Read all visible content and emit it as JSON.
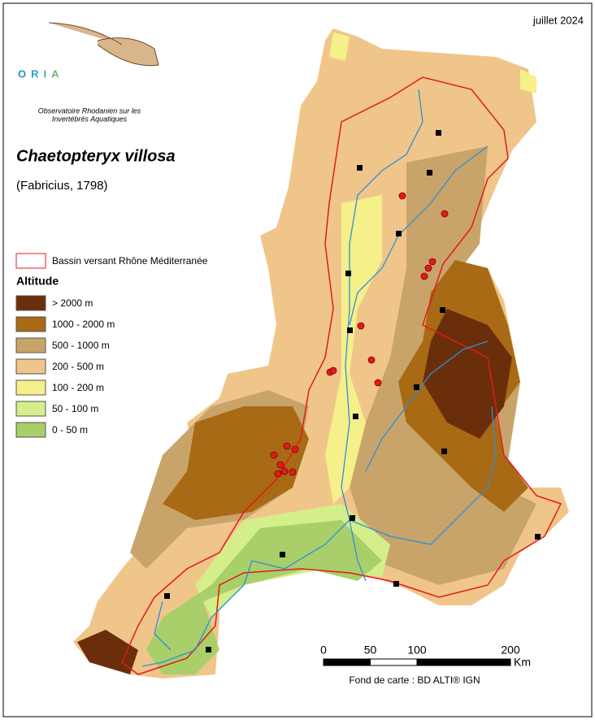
{
  "header": {
    "date": "juillet 2024"
  },
  "logo": {
    "name": "ORIA",
    "subtitle_lines": [
      "Observatoire Rhodanien sur les",
      "Invertébrés Aquatiques"
    ]
  },
  "species": {
    "name": "Chaetopteryx villosa",
    "author": "(Fabricius, 1798)"
  },
  "legend": {
    "boundary": {
      "label": "Bassin versant Rhône Méditerranée",
      "color": "#e31a1c"
    },
    "altitude_title": "Altitude",
    "classes": [
      {
        "label": "> 2000 m",
        "color": "#6b2e0a"
      },
      {
        "label": "1000 - 2000 m",
        "color": "#a86a14"
      },
      {
        "label": "500 - 1000 m",
        "color": "#c9a46a"
      },
      {
        "label": "200 - 500 m",
        "color": "#f0c58a"
      },
      {
        "label": "100 - 200 m",
        "color": "#f5f08a"
      },
      {
        "label": "50 - 100 m",
        "color": "#d4ee8a"
      },
      {
        "label": "0 - 50 m",
        "color": "#a8cf6a"
      }
    ]
  },
  "scale": {
    "ticks": [
      0,
      50,
      100,
      200
    ],
    "unit": "Km"
  },
  "credit": "Fond de carte : BD ALTI® IGN"
}
